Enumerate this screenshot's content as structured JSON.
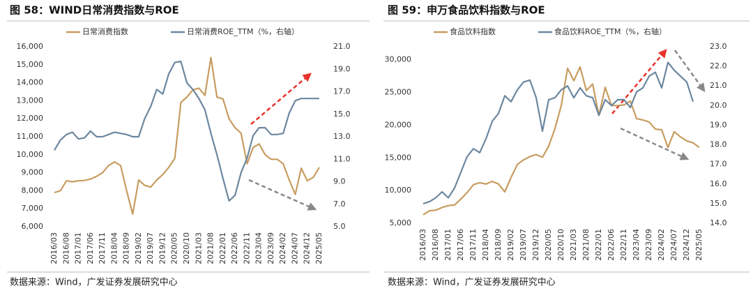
{
  "chart_data": [
    {
      "type": "line",
      "title": "图 58：WIND日常消费指数与ROE",
      "source": "数据来源：Wind，广发证券发展研究中心",
      "categories": [
        "2016/03",
        null,
        "2016/08",
        null,
        "2017/01",
        null,
        "2017/06",
        null,
        "2017/11",
        null,
        "2018/04",
        null,
        "2018/09",
        null,
        "2019/02",
        null,
        "2019/07",
        null,
        "2019/12",
        null,
        "2020/05",
        null,
        "2020/10",
        null,
        "2021/03",
        null,
        "2021/08",
        null,
        "2022/01",
        null,
        "2022/06",
        null,
        "2022/11",
        null,
        "2023/04",
        null,
        "2023/09",
        null,
        "2024/02",
        null,
        "2024/07",
        null,
        "2024/12",
        null,
        "2025/05"
      ],
      "series": [
        {
          "name": "日常消费指数",
          "color": "#c79c60",
          "values": [
            7900,
            8000,
            8550,
            8500,
            8550,
            8570,
            8650,
            8800,
            9000,
            9400,
            9600,
            9400,
            8000,
            6700,
            8600,
            8300,
            8200,
            8600,
            8900,
            9300,
            9800,
            12900,
            13200,
            13600,
            13700,
            13300,
            15400,
            13200,
            13100,
            12000,
            11500,
            11200,
            9500,
            10400,
            10600,
            10000,
            9750,
            9750,
            9500,
            8600,
            7800,
            9250,
            8550,
            8750,
            9300
          ]
        },
        {
          "name": "日常消费ROE_TTM（%，右轴）",
          "color": "#6b87a0",
          "axis": "y2",
          "values": [
            11.8,
            12.7,
            13.2,
            13.4,
            12.8,
            12.9,
            13.5,
            13.0,
            13.0,
            13.2,
            13.4,
            13.3,
            13.2,
            13.0,
            13.0,
            14.6,
            15.7,
            17.2,
            16.8,
            18.6,
            19.6,
            19.7,
            17.8,
            17.2,
            16.4,
            15.4,
            13.3,
            11.4,
            9.3,
            7.3,
            7.8,
            9.8,
            11.1,
            13.1,
            13.8,
            13.8,
            13.2,
            13.2,
            13.3,
            15.1,
            16.2,
            16.4,
            16.4,
            16.4,
            16.4
          ]
        }
      ],
      "ylim": [
        6000,
        16000
      ],
      "yticks": [
        {
          "value": 6000,
          "label": "6,000"
        },
        {
          "value": 7000,
          "label": "7,000"
        },
        {
          "value": 8000,
          "label": "8,000"
        },
        {
          "value": 9000,
          "label": "9,000"
        },
        {
          "value": 10000,
          "label": "10,000"
        },
        {
          "value": 11000,
          "label": "11,000"
        },
        {
          "value": 12000,
          "label": "12,000"
        },
        {
          "value": 13000,
          "label": "13,000"
        },
        {
          "value": 14000,
          "label": "14,000"
        },
        {
          "value": 15000,
          "label": "15,000"
        },
        {
          "value": 16000,
          "label": "16,000"
        }
      ],
      "y2lim": [
        5,
        21
      ],
      "y2ticks": [
        {
          "value": 5,
          "label": "5.0"
        },
        {
          "value": 7,
          "label": "7.0"
        },
        {
          "value": 9,
          "label": "9.0"
        },
        {
          "value": 11,
          "label": "11.0"
        },
        {
          "value": 13,
          "label": "13.0"
        },
        {
          "value": 15,
          "label": "15.0"
        },
        {
          "value": 17,
          "label": "17.0"
        },
        {
          "value": 19,
          "label": "19.0"
        },
        {
          "value": 21,
          "label": "21.0"
        }
      ]
    },
    {
      "type": "line",
      "title": "图 59：申万食品饮料指数与ROE",
      "source": "数据来源：Wind，广发证券发展研究中心",
      "categories": [
        "2016/03",
        null,
        "2016/08",
        null,
        "2017/01",
        null,
        "2017/06",
        null,
        "2017/11",
        null,
        "2018/04",
        null,
        "2018/09",
        null,
        "2019/02",
        null,
        "2019/07",
        null,
        "2019/12",
        null,
        "2020/05",
        null,
        "2020/10",
        null,
        "2021/03",
        null,
        "2021/08",
        null,
        "2022/01",
        null,
        "2022/06",
        null,
        "2022/11",
        null,
        "2023/04",
        null,
        "2023/09",
        null,
        "2024/02",
        null,
        "2024/07",
        null,
        "2024/12",
        null,
        "2025/05"
      ],
      "series": [
        {
          "name": "食品饮料指数",
          "color": "#c79c60",
          "values": [
            6300,
            6900,
            7000,
            7400,
            7700,
            7800,
            8700,
            9700,
            10900,
            11200,
            11000,
            11400,
            11000,
            9800,
            12000,
            14000,
            14700,
            15200,
            15500,
            15100,
            16800,
            19500,
            23000,
            28700,
            26800,
            28900,
            25300,
            26300,
            21500,
            25800,
            23000,
            23000,
            23100,
            23700,
            21000,
            20800,
            20500,
            19400,
            19300,
            16600,
            19000,
            18200,
            17600,
            17300,
            16600
          ]
        },
        {
          "name": "食品饮料ROE_TTM（%，右轴）",
          "color": "#6b87a0",
          "axis": "y2",
          "values": [
            15.0,
            15.1,
            15.3,
            15.6,
            15.3,
            15.8,
            16.6,
            17.4,
            17.8,
            17.6,
            18.3,
            19.2,
            19.6,
            20.5,
            20.2,
            20.8,
            21.2,
            21.3,
            20.4,
            18.7,
            20.3,
            20.4,
            20.8,
            21.0,
            20.4,
            20.9,
            20.5,
            20.4,
            19.5,
            20.3,
            20.0,
            20.3,
            20.3,
            19.9,
            20.7,
            20.9,
            21.5,
            21.7,
            20.9,
            22.2,
            21.8,
            21.5,
            21.2,
            20.2,
            null
          ]
        }
      ],
      "ylim": [
        5000,
        32000
      ],
      "yticks": [
        {
          "value": 5000,
          "label": "5,000"
        },
        {
          "value": 10000,
          "label": "10,000"
        },
        {
          "value": 15000,
          "label": "15,000"
        },
        {
          "value": 20000,
          "label": "20,000"
        },
        {
          "value": 25000,
          "label": "25,000"
        },
        {
          "value": 30000,
          "label": "30,000"
        }
      ],
      "y2lim": [
        14,
        23
      ],
      "y2ticks": [
        {
          "value": 14,
          "label": "14.0"
        },
        {
          "value": 15,
          "label": "15.0"
        },
        {
          "value": 16,
          "label": "16.0"
        },
        {
          "value": 17,
          "label": "17.0"
        },
        {
          "value": 18,
          "label": "18.0"
        },
        {
          "value": 19,
          "label": "19.0"
        },
        {
          "value": 20,
          "label": "20.0"
        },
        {
          "value": 21,
          "label": "21.0"
        },
        {
          "value": 22,
          "label": "22.0"
        },
        {
          "value": 23,
          "label": "23.0"
        }
      ]
    }
  ]
}
